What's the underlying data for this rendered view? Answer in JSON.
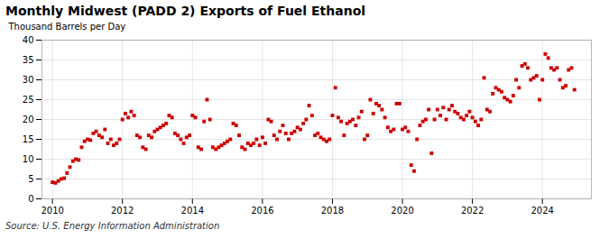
{
  "chart_data": {
    "type": "scatter",
    "title": "Monthly Midwest (PADD 2) Exports of Fuel Ethanol",
    "ylabel": "Thousand Barrels per Day",
    "annotations": [
      "Source: U.S. Energy Information Administration"
    ],
    "color": "#cc0000",
    "marker": "square",
    "grid": true,
    "xlim": [
      2009.7,
      2025.4
    ],
    "xticks": [
      2010,
      2012,
      2014,
      2016,
      2018,
      2020,
      2022,
      2024
    ],
    "ylim": [
      0,
      40
    ],
    "yticks": [
      0,
      5,
      10,
      15,
      20,
      25,
      30,
      35,
      40
    ],
    "x": [
      2010.0,
      2010.083,
      2010.167,
      2010.25,
      2010.333,
      2010.417,
      2010.5,
      2010.583,
      2010.667,
      2010.75,
      2010.833,
      2010.917,
      2011.0,
      2011.083,
      2011.167,
      2011.25,
      2011.333,
      2011.417,
      2011.5,
      2011.583,
      2011.667,
      2011.75,
      2011.833,
      2011.917,
      2012.0,
      2012.083,
      2012.167,
      2012.25,
      2012.333,
      2012.417,
      2012.5,
      2012.583,
      2012.667,
      2012.75,
      2012.833,
      2012.917,
      2013.0,
      2013.083,
      2013.167,
      2013.25,
      2013.333,
      2013.417,
      2013.5,
      2013.583,
      2013.667,
      2013.75,
      2013.833,
      2013.917,
      2014.0,
      2014.083,
      2014.167,
      2014.25,
      2014.333,
      2014.417,
      2014.5,
      2014.583,
      2014.667,
      2014.75,
      2014.833,
      2014.917,
      2015.0,
      2015.083,
      2015.167,
      2015.25,
      2015.333,
      2015.417,
      2015.5,
      2015.583,
      2015.667,
      2015.75,
      2015.833,
      2015.917,
      2016.0,
      2016.083,
      2016.167,
      2016.25,
      2016.333,
      2016.417,
      2016.5,
      2016.583,
      2016.667,
      2016.75,
      2016.833,
      2016.917,
      2017.0,
      2017.083,
      2017.167,
      2017.25,
      2017.333,
      2017.417,
      2017.5,
      2017.583,
      2017.667,
      2017.75,
      2017.833,
      2017.917,
      2018.0,
      2018.083,
      2018.167,
      2018.25,
      2018.333,
      2018.417,
      2018.5,
      2018.583,
      2018.667,
      2018.75,
      2018.833,
      2018.917,
      2019.0,
      2019.083,
      2019.167,
      2019.25,
      2019.333,
      2019.417,
      2019.5,
      2019.583,
      2019.667,
      2019.75,
      2019.833,
      2019.917,
      2020.0,
      2020.083,
      2020.167,
      2020.25,
      2020.333,
      2020.417,
      2020.5,
      2020.583,
      2020.667,
      2020.75,
      2020.833,
      2020.917,
      2021.0,
      2021.083,
      2021.167,
      2021.25,
      2021.333,
      2021.417,
      2021.5,
      2021.583,
      2021.667,
      2021.75,
      2021.833,
      2021.917,
      2022.0,
      2022.083,
      2022.167,
      2022.25,
      2022.333,
      2022.417,
      2022.5,
      2022.583,
      2022.667,
      2022.75,
      2022.833,
      2022.917,
      2023.0,
      2023.083,
      2023.167,
      2023.25,
      2023.333,
      2023.417,
      2023.5,
      2023.583,
      2023.667,
      2023.75,
      2023.833,
      2023.917,
      2024.0,
      2024.083,
      2024.167,
      2024.25,
      2024.333,
      2024.417,
      2024.5,
      2024.583,
      2024.667,
      2024.75,
      2024.833,
      2024.917
    ],
    "values": [
      4.2,
      4.0,
      4.5,
      5.0,
      5.2,
      6.5,
      8.0,
      9.5,
      10.0,
      9.8,
      13.0,
      14.5,
      15.0,
      14.8,
      16.5,
      17.0,
      16.0,
      15.5,
      17.5,
      14.0,
      15.0,
      13.5,
      14.0,
      15.0,
      20.0,
      21.5,
      20.5,
      22.0,
      21.0,
      16.0,
      15.5,
      13.0,
      12.5,
      16.0,
      15.5,
      17.0,
      17.5,
      18.0,
      18.5,
      19.0,
      21.0,
      20.5,
      16.5,
      16.0,
      15.0,
      14.0,
      15.5,
      16.0,
      21.0,
      20.5,
      13.0,
      12.5,
      19.5,
      25.0,
      20.0,
      13.0,
      12.5,
      13.0,
      13.5,
      14.0,
      14.5,
      15.0,
      19.0,
      18.5,
      16.0,
      13.0,
      12.5,
      14.0,
      13.5,
      14.0,
      15.0,
      13.5,
      15.5,
      14.0,
      20.0,
      19.5,
      16.0,
      15.0,
      17.0,
      18.5,
      16.5,
      15.0,
      16.5,
      17.0,
      18.0,
      17.5,
      19.0,
      20.0,
      23.5,
      21.0,
      16.0,
      16.5,
      15.5,
      15.0,
      14.5,
      15.0,
      21.0,
      28.0,
      20.5,
      19.5,
      16.0,
      19.0,
      19.5,
      20.0,
      18.5,
      20.5,
      22.0,
      15.0,
      16.0,
      25.0,
      21.5,
      24.0,
      23.5,
      22.5,
      20.5,
      18.0,
      17.0,
      17.5,
      24.0,
      24.0,
      17.5,
      18.0,
      17.0,
      8.5,
      7.0,
      15.0,
      18.5,
      19.5,
      20.0,
      22.5,
      11.5,
      20.0,
      22.5,
      21.0,
      23.0,
      20.0,
      22.5,
      23.5,
      22.0,
      21.5,
      20.5,
      20.0,
      21.0,
      22.0,
      20.5,
      19.5,
      18.5,
      20.0,
      30.5,
      22.5,
      22.0,
      26.5,
      28.0,
      27.5,
      27.0,
      25.5,
      25.0,
      24.5,
      26.0,
      30.0,
      28.0,
      33.5,
      34.0,
      33.0,
      30.0,
      30.5,
      31.0,
      25.0,
      30.0,
      36.5,
      35.5,
      33.0,
      32.5,
      33.0,
      30.0,
      28.0,
      28.5,
      32.5,
      33.0,
      27.5
    ]
  }
}
